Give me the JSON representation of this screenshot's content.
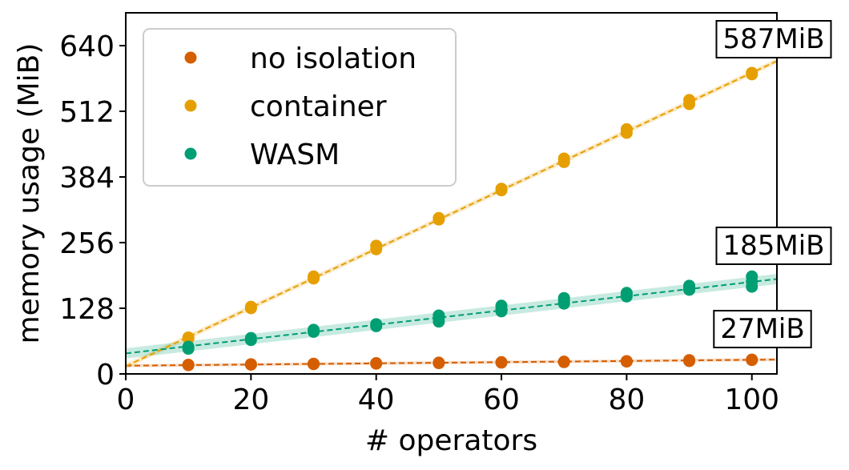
{
  "chart_data": {
    "type": "scatter",
    "xlabel": "# operators",
    "ylabel": "memory usage (MiB)",
    "xlim": [
      0,
      104
    ],
    "ylim": [
      0,
      704
    ],
    "xticks": [
      0,
      20,
      40,
      60,
      80,
      100
    ],
    "yticks": [
      0,
      128,
      256,
      384,
      512,
      640
    ],
    "grid": false,
    "legend": {
      "position": "top-left",
      "entries": [
        {
          "label": "no isolation",
          "color": "#d55e00"
        },
        {
          "label": "container",
          "color": "#e69f00"
        },
        {
          "label": "WASM",
          "color": "#009e73"
        }
      ]
    },
    "series": [
      {
        "name": "no isolation",
        "color": "#d55e00",
        "x": [
          10,
          10,
          20,
          20,
          30,
          30,
          40,
          40,
          50,
          50,
          60,
          60,
          70,
          70,
          80,
          80,
          90,
          90,
          100,
          100
        ],
        "y": [
          17,
          18,
          18,
          19,
          19,
          20,
          20,
          21,
          21,
          22,
          22,
          23,
          23,
          24,
          24,
          25,
          25,
          27,
          27,
          28
        ],
        "fit": {
          "x": [
            0,
            104
          ],
          "y": [
            16,
            28
          ]
        },
        "band": 3
      },
      {
        "name": "container",
        "color": "#e69f00",
        "x": [
          10,
          10,
          20,
          20,
          30,
          30,
          40,
          40,
          50,
          50,
          60,
          60,
          70,
          70,
          80,
          80,
          90,
          90,
          100,
          100
        ],
        "y": [
          69,
          71,
          128,
          131,
          186,
          190,
          243,
          250,
          301,
          304,
          358,
          361,
          413,
          420,
          470,
          477,
          526,
          534,
          584,
          587
        ],
        "fit": {
          "x": [
            0,
            104
          ],
          "y": [
            15,
            610
          ]
        },
        "band": 5
      },
      {
        "name": "WASM",
        "color": "#009e73",
        "x": [
          10,
          10,
          20,
          20,
          30,
          30,
          40,
          40,
          50,
          50,
          50,
          60,
          60,
          60,
          70,
          70,
          70,
          80,
          80,
          80,
          90,
          90,
          90,
          100,
          100,
          100
        ],
        "y": [
          49,
          53,
          66,
          70,
          82,
          86,
          93,
          97,
          102,
          109,
          114,
          122,
          127,
          133,
          137,
          143,
          148,
          151,
          155,
          158,
          164,
          168,
          172,
          170,
          180,
          190
        ],
        "fit": {
          "x": [
            0,
            104
          ],
          "y": [
            40,
            185
          ]
        },
        "band": 10
      }
    ],
    "annotations": [
      {
        "text": "587MiB",
        "x": 100,
        "y": 587,
        "color": "#000000"
      },
      {
        "text": "185MiB",
        "x": 100,
        "y": 185,
        "color": "#000000"
      },
      {
        "text": "27MiB",
        "x": 100,
        "y": 27,
        "color": "#000000"
      }
    ]
  }
}
